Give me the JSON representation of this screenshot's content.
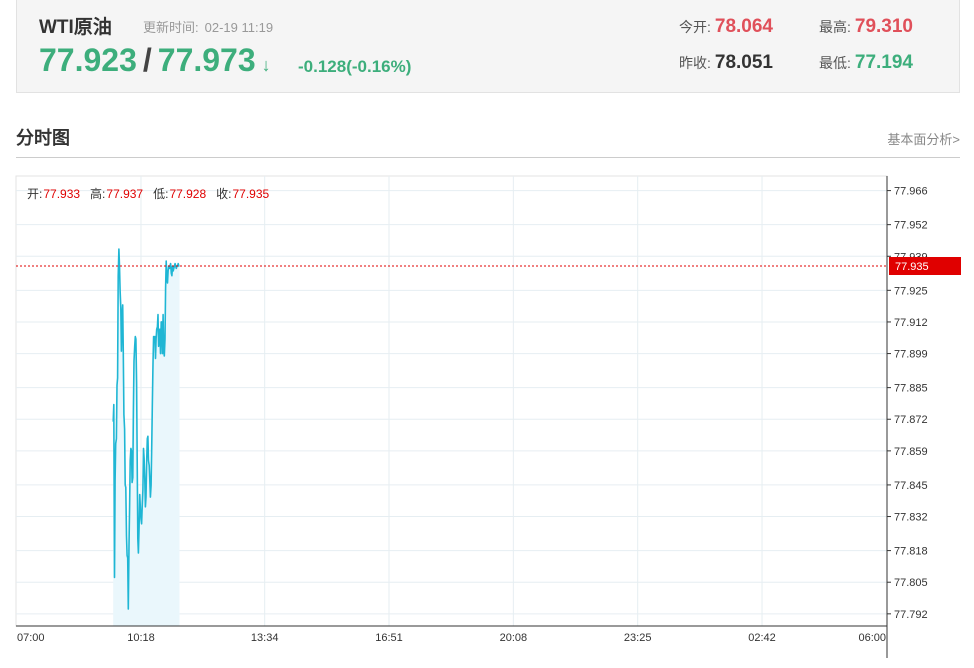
{
  "header": {
    "symbol": "WTI原油",
    "update_label": "更新时间:",
    "update_time": "02-19 11:19",
    "bid": "77.923",
    "ask": "77.973",
    "arrow": "↓",
    "change": "-0.128(-0.16%)",
    "open_label": "今开:",
    "open_value": "78.064",
    "prev_close_label": "昨收:",
    "prev_close_value": "78.051",
    "high_label": "最高:",
    "high_value": "79.310",
    "low_label": "最低:",
    "low_value": "77.194"
  },
  "section": {
    "title": "分时图",
    "link": "基本面分析>"
  },
  "colors": {
    "up": "#e0505a",
    "down": "#3dae7c",
    "line": "#1fb6d4",
    "area": "#eaf7fc",
    "current_price": "#e00000"
  },
  "chart_data": {
    "type": "line",
    "ohlc_legend": [
      {
        "label": "开:",
        "value": "77.933"
      },
      {
        "label": "高:",
        "value": "77.937"
      },
      {
        "label": "低:",
        "value": "77.928"
      },
      {
        "label": "收:",
        "value": "77.935"
      }
    ],
    "current_price": "77.935",
    "x_ticks": [
      "07:00",
      "10:18",
      "13:34",
      "16:51",
      "20:08",
      "23:25",
      "02:42",
      "06:00"
    ],
    "y_ticks": [
      "77.966",
      "77.952",
      "77.939",
      "77.925",
      "77.912",
      "77.899",
      "77.885",
      "77.872",
      "77.859",
      "77.845",
      "77.832",
      "77.818",
      "77.805",
      "77.792"
    ],
    "xlim": [
      "07:00",
      "06:00"
    ],
    "ylim": [
      77.787,
      77.972
    ],
    "grid": true,
    "x": [
      "09:34",
      "09:35",
      "09:36",
      "09:37",
      "09:38",
      "09:39",
      "09:40",
      "09:41",
      "09:42",
      "09:43",
      "09:44",
      "09:45",
      "09:46",
      "09:47",
      "09:48",
      "09:49",
      "09:50",
      "09:51",
      "09:52",
      "09:53",
      "09:54",
      "09:55",
      "09:56",
      "09:57",
      "09:58",
      "09:59",
      "10:00",
      "10:01",
      "10:02",
      "10:03",
      "10:04",
      "10:05",
      "10:06",
      "10:07",
      "10:08",
      "10:09",
      "10:10",
      "10:11",
      "10:12",
      "10:13",
      "10:14",
      "10:15",
      "10:16",
      "10:17",
      "10:18",
      "10:19",
      "10:20",
      "10:21",
      "10:22",
      "10:23",
      "10:24",
      "10:25",
      "10:26",
      "10:27",
      "10:28",
      "10:29",
      "10:30",
      "10:31",
      "10:32",
      "10:33",
      "10:34",
      "10:35",
      "10:36",
      "10:37",
      "10:38",
      "10:39",
      "10:40",
      "10:41",
      "10:42",
      "10:43",
      "10:44",
      "10:45",
      "10:46",
      "10:47",
      "10:48",
      "10:49",
      "10:50",
      "10:51",
      "10:52",
      "10:53",
      "10:54",
      "10:55",
      "10:56",
      "10:57",
      "10:58",
      "10:59",
      "11:00",
      "11:01",
      "11:02",
      "11:03",
      "11:04",
      "11:05",
      "11:06",
      "11:07",
      "11:08",
      "11:09",
      "11:10",
      "11:11",
      "11:12",
      "11:13",
      "11:14",
      "11:15",
      "11:16",
      "11:17",
      "11:18",
      "11:19"
    ],
    "values": [
      77.871,
      77.878,
      77.807,
      77.847,
      77.862,
      77.864,
      77.886,
      77.889,
      77.931,
      77.942,
      77.935,
      77.925,
      77.918,
      77.9,
      77.914,
      77.919,
      77.899,
      77.874,
      77.868,
      77.845,
      77.844,
      77.824,
      77.816,
      77.815,
      77.794,
      77.82,
      77.836,
      77.855,
      77.86,
      77.859,
      77.846,
      77.848,
      77.876,
      77.896,
      77.902,
      77.906,
      77.905,
      77.887,
      77.855,
      77.823,
      77.817,
      77.828,
      77.841,
      77.836,
      77.831,
      77.829,
      77.836,
      77.843,
      77.86,
      77.856,
      77.847,
      77.836,
      77.84,
      77.855,
      77.864,
      77.865,
      77.855,
      77.853,
      77.847,
      77.84,
      77.845,
      77.86,
      77.877,
      77.895,
      77.906,
      77.904,
      77.906,
      77.897,
      77.905,
      77.909,
      77.91,
      77.915,
      77.902,
      77.906,
      77.909,
      77.899,
      77.912,
      77.912,
      77.899,
      77.915,
      77.9,
      77.898,
      77.905,
      77.926,
      77.937,
      77.93,
      77.928,
      77.933,
      77.935,
      77.934,
      77.935,
      77.936,
      77.932,
      77.931,
      77.935,
      77.933,
      77.934,
      77.935,
      77.936,
      77.935,
      77.934,
      77.935,
      77.935,
      77.936,
      77.935,
      77.935
    ]
  }
}
